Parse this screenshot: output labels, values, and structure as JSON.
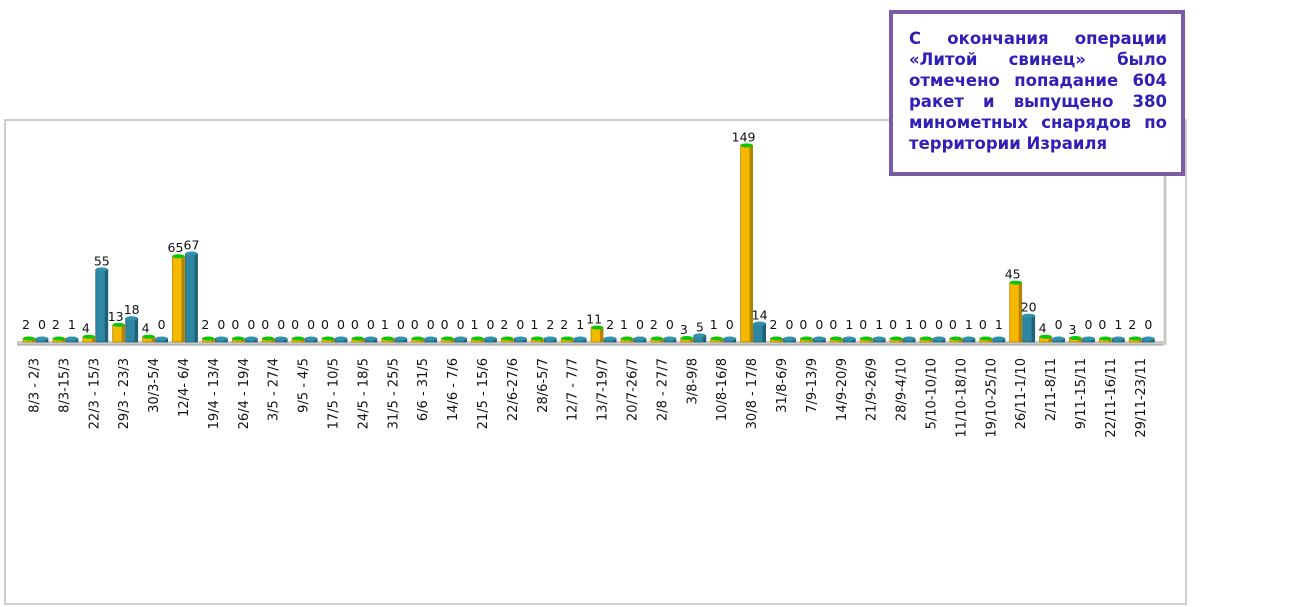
{
  "callout": {
    "text": "С окончания операции «Литой свинец» было отмечено попадание 604 ракет и выпущено 380 минометных снарядов по территории Израиля"
  },
  "chart_data": {
    "type": "bar",
    "title": "",
    "xlabel": "",
    "ylabel": "",
    "grid": false,
    "legend": "none",
    "categories": [
      "8/3 - 2/3",
      "8/3-15/3",
      "22/3 - 15/3",
      "29/3 - 23/3",
      "30/3-5/4",
      "12/4- 6/4",
      "19/4 - 13/4",
      "26/4 - 19/4",
      "3/5 - 27/4",
      "9/5 - 4/5",
      "17/5 - 10/5",
      "24/5 - 18/5",
      "31/5 - 25/5",
      "6/6 - 31/5",
      "14/6 - 7/6",
      "21/5 - 15/6",
      "22/6-27/6",
      "28/6-5/7",
      "12/7 - 7/7",
      "13/7-19/7",
      "20/7-26/7",
      "2/8 - 27/7",
      "3/8-9/8",
      "10/8-16/8",
      "30/8 - 17/8",
      "31/8-6/9",
      "7/9-13/9",
      "14/9-20/9",
      "21/9-26/9",
      "28/9-4/10",
      "5/10-10/10",
      "11/10-18/10",
      "19/10-25/10",
      "26/11-1/10",
      "2/11-8/11",
      "9/11-15/11",
      "22/11-16/11",
      "29/11-23/11"
    ],
    "series": [
      {
        "color": "#f5b800",
        "values": [
          2,
          2,
          4,
          13,
          4,
          65,
          2,
          0,
          0,
          0,
          0,
          0,
          1,
          0,
          0,
          1,
          2,
          1,
          2,
          11,
          1,
          2,
          3,
          1,
          149,
          2,
          0,
          0,
          0,
          0,
          0,
          0,
          0,
          45,
          4,
          3,
          0,
          2
        ],
        "labels": [
          "2",
          "2",
          "4",
          "13",
          "4",
          "65",
          "2",
          "0",
          "0",
          "0",
          "0",
          "0",
          "1",
          "0",
          "0",
          "1",
          "2",
          "1",
          "2",
          "11",
          "1",
          "2",
          "3",
          "1",
          "149",
          "2",
          "0",
          "0",
          "0",
          "0",
          "0",
          "0",
          "0",
          "45",
          "4",
          "3",
          "0",
          "2"
        ]
      },
      {
        "color": "#2d87a3",
        "values": [
          0,
          1,
          55,
          18,
          0,
          67,
          0,
          0,
          0,
          0,
          0,
          0,
          0,
          0,
          0,
          0,
          0,
          2,
          1,
          2,
          0,
          0,
          5,
          0,
          14,
          0,
          0,
          1,
          1,
          1,
          0,
          1,
          1,
          20,
          0,
          0,
          1,
          0
        ],
        "labels": [
          "0",
          "1",
          "55",
          "18",
          "0",
          "67",
          "0",
          "0",
          "0",
          "0",
          "0",
          "0",
          "0",
          "0",
          "0",
          "0",
          "0",
          "2",
          "1",
          "2",
          "0",
          "0",
          "5",
          "0",
          "14",
          "0",
          "0",
          "1",
          "1",
          "1",
          "0",
          "1",
          "1",
          "20",
          "0",
          "0",
          "1",
          "0"
        ]
      }
    ]
  }
}
